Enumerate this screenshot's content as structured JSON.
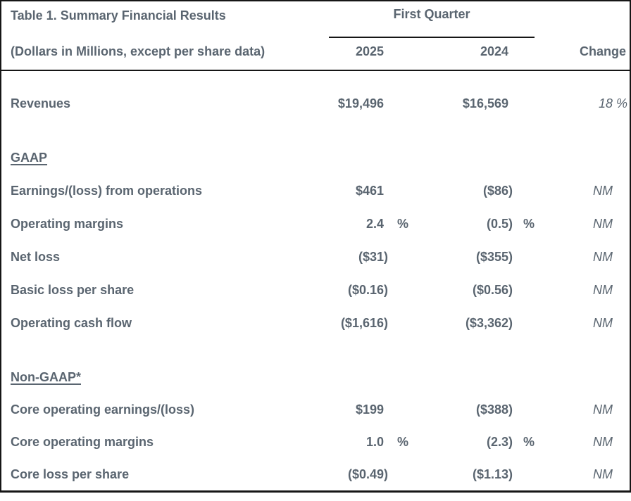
{
  "table": {
    "percent_sign": "%",
    "header": {
      "title": "Table 1. Summary Financial Results",
      "subtitle": "(Dollars in Millions, except per share data)",
      "quarter_label": "First Quarter",
      "col_2025": "2025",
      "col_2024": "2024",
      "col_change": "Change"
    },
    "sections": [
      {
        "heading": "",
        "rows": [
          {
            "label": "Revenues",
            "y2025": {
              "v": "$19,496"
            },
            "y2024": {
              "v": "$16,569"
            },
            "change": {
              "v": "18",
              "pct": true
            }
          }
        ]
      },
      {
        "heading": "GAAP",
        "rows": [
          {
            "label": "Earnings/(loss) from operations",
            "y2025": {
              "v": "$461"
            },
            "y2024": {
              "v": "($86)"
            },
            "change": {
              "v": "NM"
            }
          },
          {
            "label": "Operating margins",
            "y2025": {
              "v": "2.4",
              "pct": true
            },
            "y2024": {
              "v": "(0.5)",
              "pct": true
            },
            "change": {
              "v": "NM"
            }
          },
          {
            "label": "Net loss",
            "y2025": {
              "v": "($31)"
            },
            "y2024": {
              "v": "($355)"
            },
            "change": {
              "v": "NM"
            }
          },
          {
            "label": "Basic loss per share",
            "y2025": {
              "v": "($0.16)"
            },
            "y2024": {
              "v": "($0.56)"
            },
            "change": {
              "v": "NM"
            }
          },
          {
            "label": "Operating cash flow",
            "y2025": {
              "v": "($1,616)"
            },
            "y2024": {
              "v": "($3,362)"
            },
            "change": {
              "v": "NM"
            }
          }
        ]
      },
      {
        "heading": "Non-GAAP*",
        "rows": [
          {
            "label": "Core operating earnings/(loss)",
            "y2025": {
              "v": "$199"
            },
            "y2024": {
              "v": "($388)"
            },
            "change": {
              "v": "NM"
            }
          },
          {
            "label": "Core operating margins",
            "y2025": {
              "v": "1.0",
              "pct": true
            },
            "y2024": {
              "v": "(2.3)",
              "pct": true
            },
            "change": {
              "v": "NM"
            }
          },
          {
            "label": "Core loss per share",
            "y2025": {
              "v": "($0.49)"
            },
            "y2024": {
              "v": "($1.13)"
            },
            "change": {
              "v": "NM"
            }
          }
        ]
      }
    ],
    "colors": {
      "text": "#5a6570",
      "border": "#161616",
      "background": "#ffffff"
    }
  }
}
